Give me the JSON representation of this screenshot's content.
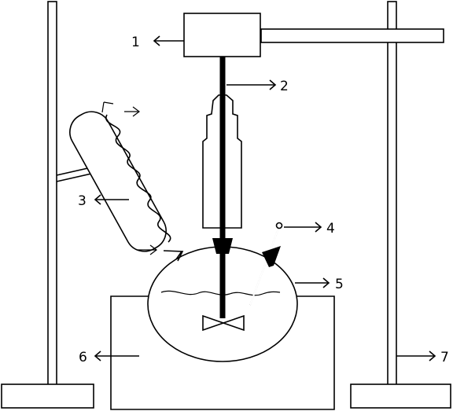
{
  "labels": {
    "l1": "1",
    "l2": "2",
    "l3": "3",
    "l4": "4",
    "l5": "5",
    "l6": "6",
    "l7": "7"
  }
}
